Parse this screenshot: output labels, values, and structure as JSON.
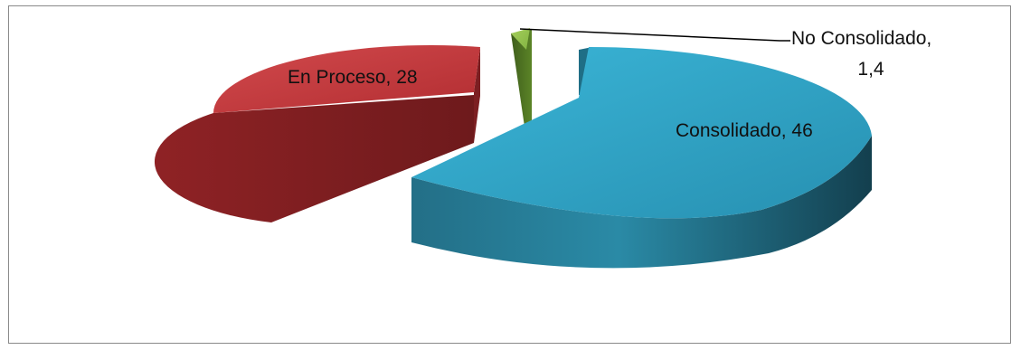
{
  "chart_data": {
    "type": "pie",
    "style": "3d-exploded",
    "slices": [
      {
        "label": "Consolidado",
        "value": 46,
        "value_text": "46",
        "color": "#2b9ec0"
      },
      {
        "label": "En Proceso",
        "value": 28,
        "value_text": "28",
        "color": "#c0363a"
      },
      {
        "label": "No Consolidado",
        "value": 1.4,
        "value_text": "1,4",
        "color": "#7fae3e"
      }
    ],
    "data_labels": [
      {
        "line1": "Consolidado, 46"
      },
      {
        "line1": "En Proceso, 28"
      },
      {
        "line1": "No Consolidado,",
        "line2": "1,4"
      }
    ],
    "legend": "none"
  }
}
